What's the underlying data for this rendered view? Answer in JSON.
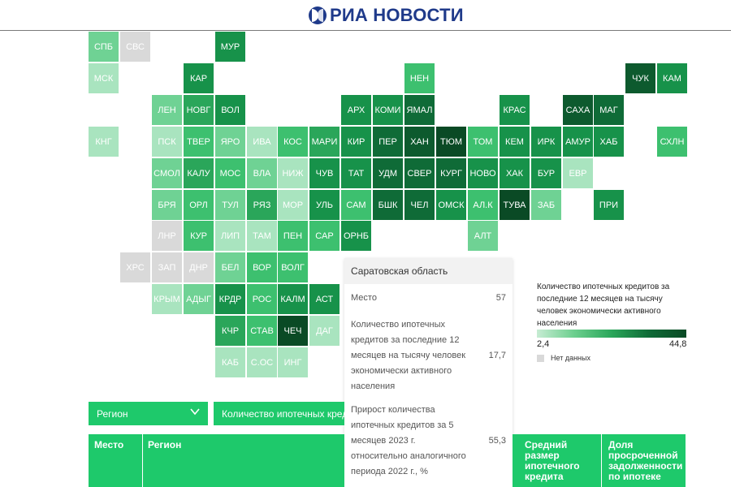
{
  "header": {
    "logo_text": "РИА НОВОСТИ"
  },
  "tiles": [
    {
      "label": "СПБ",
      "color": "#6fd294"
    },
    {
      "label": "СВС",
      "color": "#d9d9d9"
    },
    {
      "label": "МУР",
      "color": "#17924a"
    },
    {
      "label": "МСК",
      "color": "#a9e4bf"
    },
    {
      "label": "КАР",
      "color": "#17924a"
    },
    {
      "label": "НЕН",
      "color": "#3dc06f"
    },
    {
      "label": "ЧУК",
      "color": "#0d5a2e"
    },
    {
      "label": "КАМ",
      "color": "#17924a"
    },
    {
      "label": "ЛЕН",
      "color": "#6fd294"
    },
    {
      "label": "НОВГ",
      "color": "#2aa65a"
    },
    {
      "label": "ВОЛ",
      "color": "#17924a"
    },
    {
      "label": "АРХ",
      "color": "#17924a"
    },
    {
      "label": "КОМИ",
      "color": "#17924a"
    },
    {
      "label": "ЯМАЛ",
      "color": "#0f6b37"
    },
    {
      "label": "КРАС",
      "color": "#17924a"
    },
    {
      "label": "САХА",
      "color": "#0d5a2e"
    },
    {
      "label": "МАГ",
      "color": "#0f6b37"
    },
    {
      "label": "КНГ",
      "color": "#a9e4bf"
    },
    {
      "label": "ПСК",
      "color": "#a9e4bf"
    },
    {
      "label": "ТВЕР",
      "color": "#3dc06f"
    },
    {
      "label": "ЯРО",
      "color": "#6fd294"
    },
    {
      "label": "ИВА",
      "color": "#a9e4bf"
    },
    {
      "label": "КОС",
      "color": "#3dc06f"
    },
    {
      "label": "МАРИ",
      "color": "#2aa65a"
    },
    {
      "label": "КИР",
      "color": "#17924a"
    },
    {
      "label": "ПЕР",
      "color": "#0f6b37"
    },
    {
      "label": "ХАН",
      "color": "#0d5a2e"
    },
    {
      "label": "ТЮМ",
      "color": "#0a4a25"
    },
    {
      "label": "ТОМ",
      "color": "#3dc06f"
    },
    {
      "label": "КЕМ",
      "color": "#17924a"
    },
    {
      "label": "ИРК",
      "color": "#17924a"
    },
    {
      "label": "АМУР",
      "color": "#17924a"
    },
    {
      "label": "ХАБ",
      "color": "#17924a"
    },
    {
      "label": "СХЛН",
      "color": "#3dc06f"
    },
    {
      "label": "СМОЛ",
      "color": "#6fd294"
    },
    {
      "label": "КАЛУ",
      "color": "#2aa65a"
    },
    {
      "label": "МОС",
      "color": "#3dc06f"
    },
    {
      "label": "ВЛА",
      "color": "#6fd294"
    },
    {
      "label": "НИЖ",
      "color": "#a9e4bf"
    },
    {
      "label": "ЧУВ",
      "color": "#17924a"
    },
    {
      "label": "ТАТ",
      "color": "#17924a"
    },
    {
      "label": "УДМ",
      "color": "#0f6b37"
    },
    {
      "label": "СВЕР",
      "color": "#0f6b37"
    },
    {
      "label": "КУРГ",
      "color": "#0f6b37"
    },
    {
      "label": "НОВО",
      "color": "#17924a"
    },
    {
      "label": "ХАК",
      "color": "#17924a"
    },
    {
      "label": "БУР",
      "color": "#17924a"
    },
    {
      "label": "ЕВР",
      "color": "#a9e4bf"
    },
    {
      "label": "БРЯ",
      "color": "#6fd294"
    },
    {
      "label": "ОРЛ",
      "color": "#3dc06f"
    },
    {
      "label": "ТУЛ",
      "color": "#6fd294"
    },
    {
      "label": "РЯЗ",
      "color": "#2aa65a"
    },
    {
      "label": "МОР",
      "color": "#a9e4bf"
    },
    {
      "label": "УЛЬ",
      "color": "#17924a"
    },
    {
      "label": "САМ",
      "color": "#3dc06f"
    },
    {
      "label": "БШК",
      "color": "#0f6b37"
    },
    {
      "label": "ЧЕЛ",
      "color": "#0f6b37"
    },
    {
      "label": "ОМСК",
      "color": "#17924a"
    },
    {
      "label": "АЛ.К",
      "color": "#3dc06f"
    },
    {
      "label": "ТУВА",
      "color": "#0a4a25"
    },
    {
      "label": "ЗАБ",
      "color": "#6fd294"
    },
    {
      "label": "ПРИ",
      "color": "#17924a"
    },
    {
      "label": "ЛНР",
      "color": "#d9d9d9"
    },
    {
      "label": "КУР",
      "color": "#3dc06f"
    },
    {
      "label": "ЛИП",
      "color": "#a9e4bf"
    },
    {
      "label": "ТАМ",
      "color": "#a9e4bf"
    },
    {
      "label": "ПЕН",
      "color": "#3dc06f"
    },
    {
      "label": "САР",
      "color": "#3dc06f"
    },
    {
      "label": "ОРНБ",
      "color": "#17924a"
    },
    {
      "label": "АЛТ",
      "color": "#6fd294"
    },
    {
      "label": "ХРС",
      "color": "#d9d9d9"
    },
    {
      "label": "ЗАП",
      "color": "#d9d9d9"
    },
    {
      "label": "ДНР",
      "color": "#d9d9d9"
    },
    {
      "label": "БЕЛ",
      "color": "#6fd294"
    },
    {
      "label": "ВОР",
      "color": "#3dc06f"
    },
    {
      "label": "ВОЛГ",
      "color": "#3dc06f"
    },
    {
      "label": "КРЫМ",
      "color": "#a9e4bf"
    },
    {
      "label": "АДЫГ",
      "color": "#6fd294"
    },
    {
      "label": "КРДР",
      "color": "#17924a"
    },
    {
      "label": "РОС",
      "color": "#3dc06f"
    },
    {
      "label": "КАЛМ",
      "color": "#17924a"
    },
    {
      "label": "АСТ",
      "color": "#17924a"
    },
    {
      "label": "КЧР",
      "color": "#2aa65a"
    },
    {
      "label": "СТАВ",
      "color": "#3dc06f"
    },
    {
      "label": "ЧЕЧ",
      "color": "#0a4a25"
    },
    {
      "label": "ДАГ",
      "color": "#a9e4bf"
    },
    {
      "label": "КАБ",
      "color": "#a9e4bf"
    },
    {
      "label": "С.ОС",
      "color": "#a9e4bf"
    },
    {
      "label": "ИНГ",
      "color": "#a9e4bf"
    }
  ],
  "tooltip": {
    "region": "Саратовская область",
    "rows": [
      {
        "label": "Место",
        "value": "57"
      },
      {
        "label": "Количество ипотечных кредитов за последние 12 месяцев на тысячу человек экономически активного населения",
        "value": "17,7"
      },
      {
        "label": "Прирост количества ипотечных кредитов за 5 месяцев 2023 г. относительно аналогичного периода 2022 г., %",
        "value": "55,3"
      }
    ]
  },
  "legend": {
    "title": "Количество ипотечных кредитов за последние 12 месяцев на тысячу человек экономически активного населения",
    "min": "2,4",
    "max": "44,8",
    "nodata": "Нет данных"
  },
  "controls": {
    "region_select": "Регион",
    "metric_select": "Количество ипотечных кредитов за последние 12 месяцев на тысячу человек экономически активного населения"
  },
  "table": {
    "headers": [
      "Место",
      "Регион",
      "Средний размер ипотечного кредита",
      "Доля просроченной задолженности по ипотеке"
    ]
  }
}
